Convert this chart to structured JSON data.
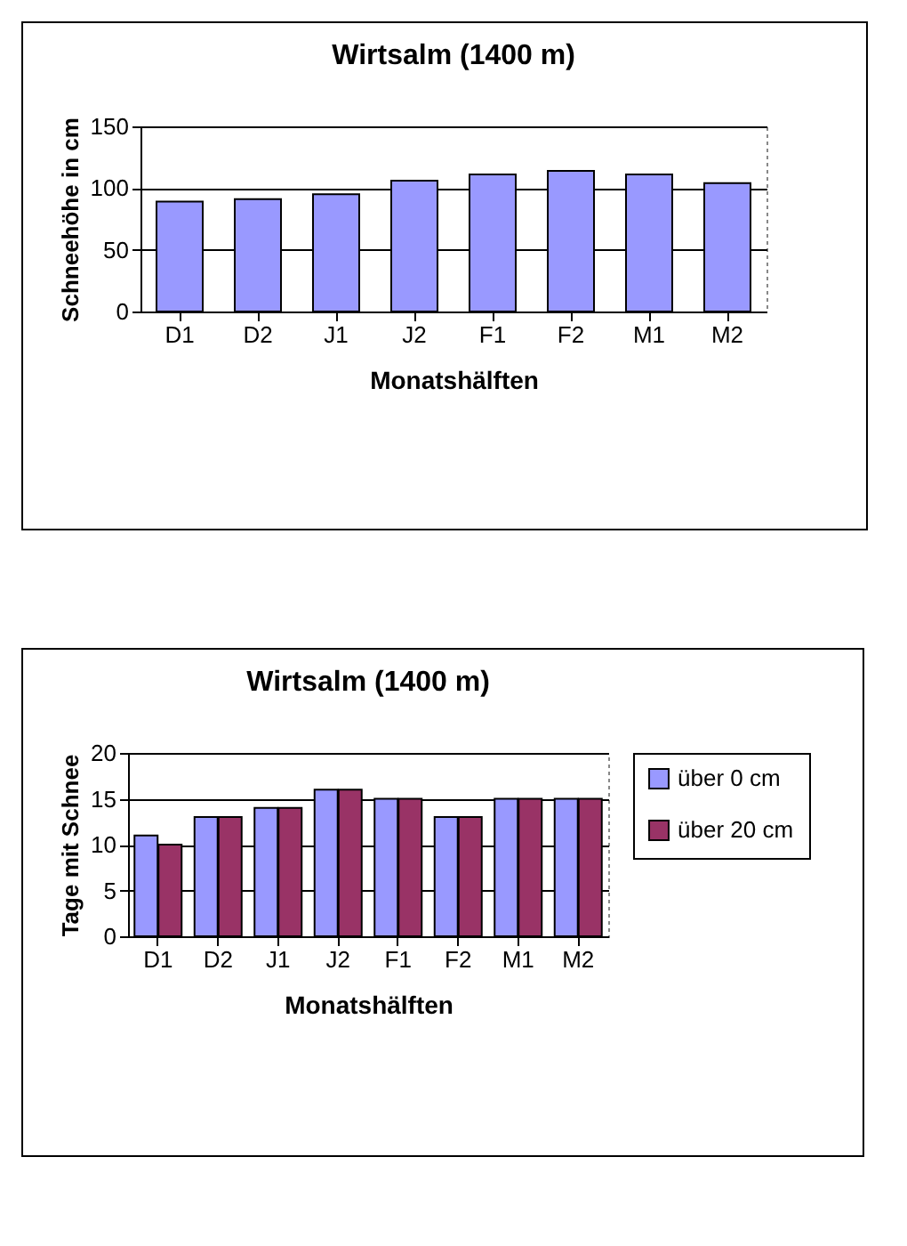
{
  "chart_data": [
    {
      "type": "bar",
      "title": "Wirtsalm (1400 m)",
      "xlabel": "Monatshälften",
      "ylabel": "Schneehöhe in cm",
      "categories": [
        "D1",
        "D2",
        "J1",
        "J2",
        "F1",
        "F2",
        "M1",
        "M2"
      ],
      "values": [
        89,
        91,
        95,
        106,
        111,
        114,
        111,
        104
      ],
      "color": "#9999ff",
      "ylim": [
        0,
        150
      ],
      "yticks": [
        0,
        50,
        100,
        150
      ],
      "grid": "y"
    },
    {
      "type": "bar",
      "title": "Wirtsalm (1400 m)",
      "xlabel": "Monatshälften",
      "ylabel": "Tage mit Schnee",
      "categories": [
        "D1",
        "D2",
        "J1",
        "J2",
        "F1",
        "F2",
        "M1",
        "M2"
      ],
      "series": [
        {
          "name": "über 0 cm",
          "color": "#9999ff",
          "values": [
            11,
            13,
            14,
            16,
            15,
            13,
            15,
            15
          ]
        },
        {
          "name": "über 20 cm",
          "color": "#993366",
          "values": [
            10,
            13,
            14,
            16,
            15,
            13,
            15,
            15
          ]
        }
      ],
      "ylim": [
        0,
        20
      ],
      "yticks": [
        0,
        5,
        10,
        15,
        20
      ],
      "grid": "y",
      "legend": "right"
    }
  ]
}
